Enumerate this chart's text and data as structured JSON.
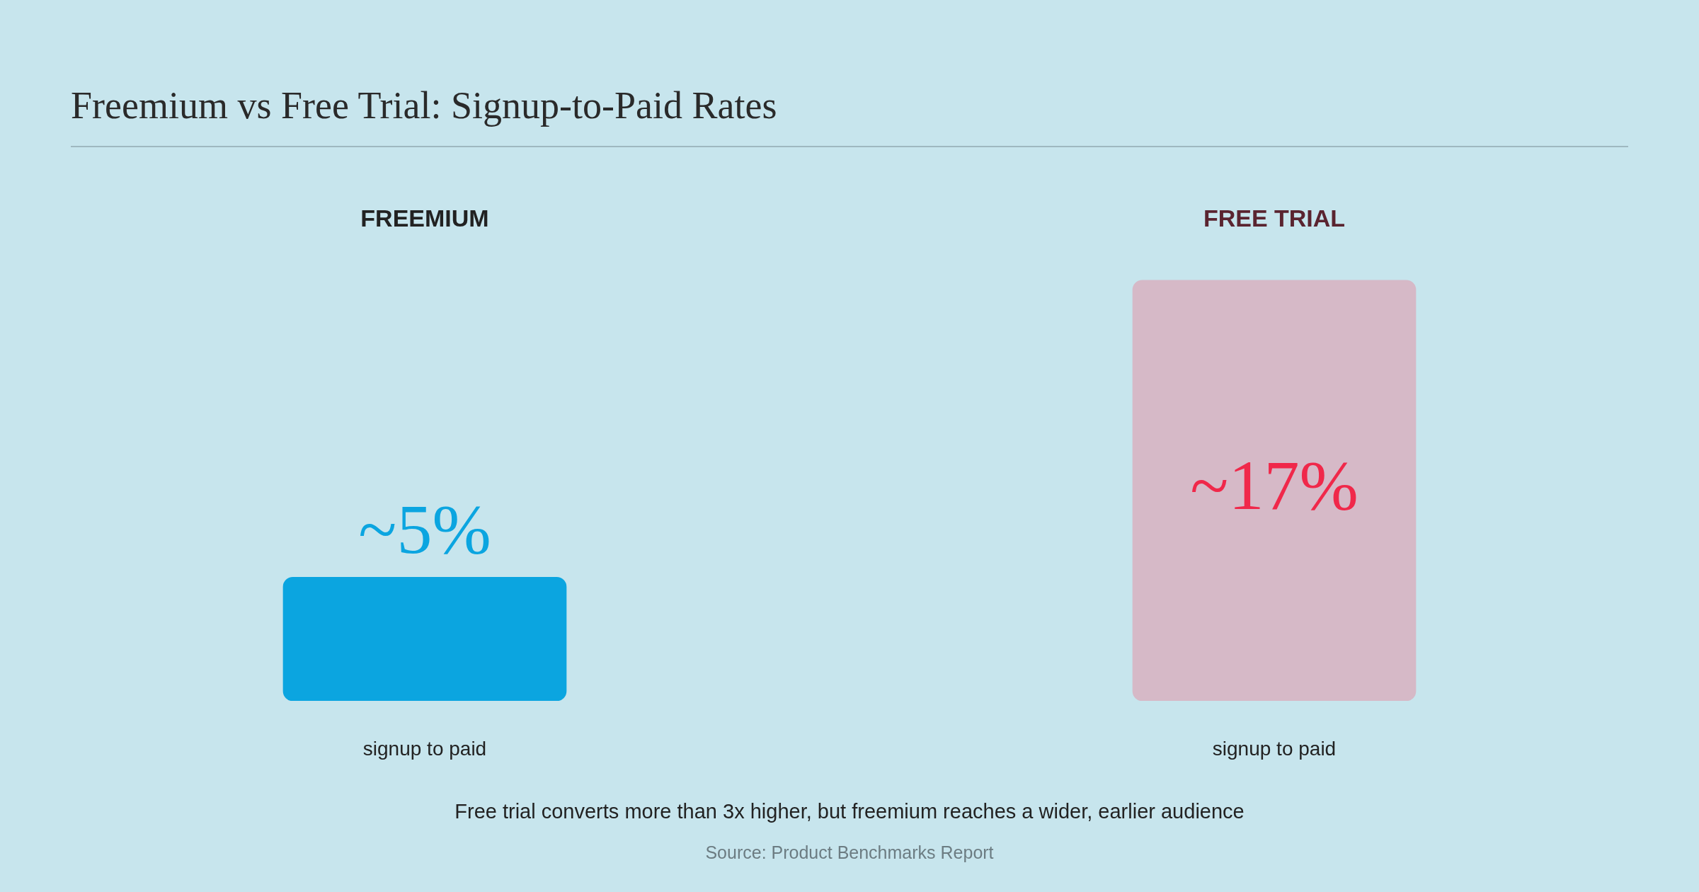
{
  "chart_data": {
    "type": "bar",
    "title": "Freemium vs Free Trial: Signup-to-Paid Rates",
    "categories": [
      "FREEMIUM",
      "FREE TRIAL"
    ],
    "values": [
      5,
      17
    ],
    "colors": [
      "#0ba5e0",
      "#d6b9c7"
    ],
    "value_labels": [
      "~5%",
      "~17%"
    ],
    "annotations": [
      "signup to paid",
      "signup to paid",
      "Free trial converts more than 3x higher, but freemium reaches a wider, earlier audience",
      "Source: Product Benchmarks Report"
    ],
    "grid": false,
    "legend": false
  }
}
